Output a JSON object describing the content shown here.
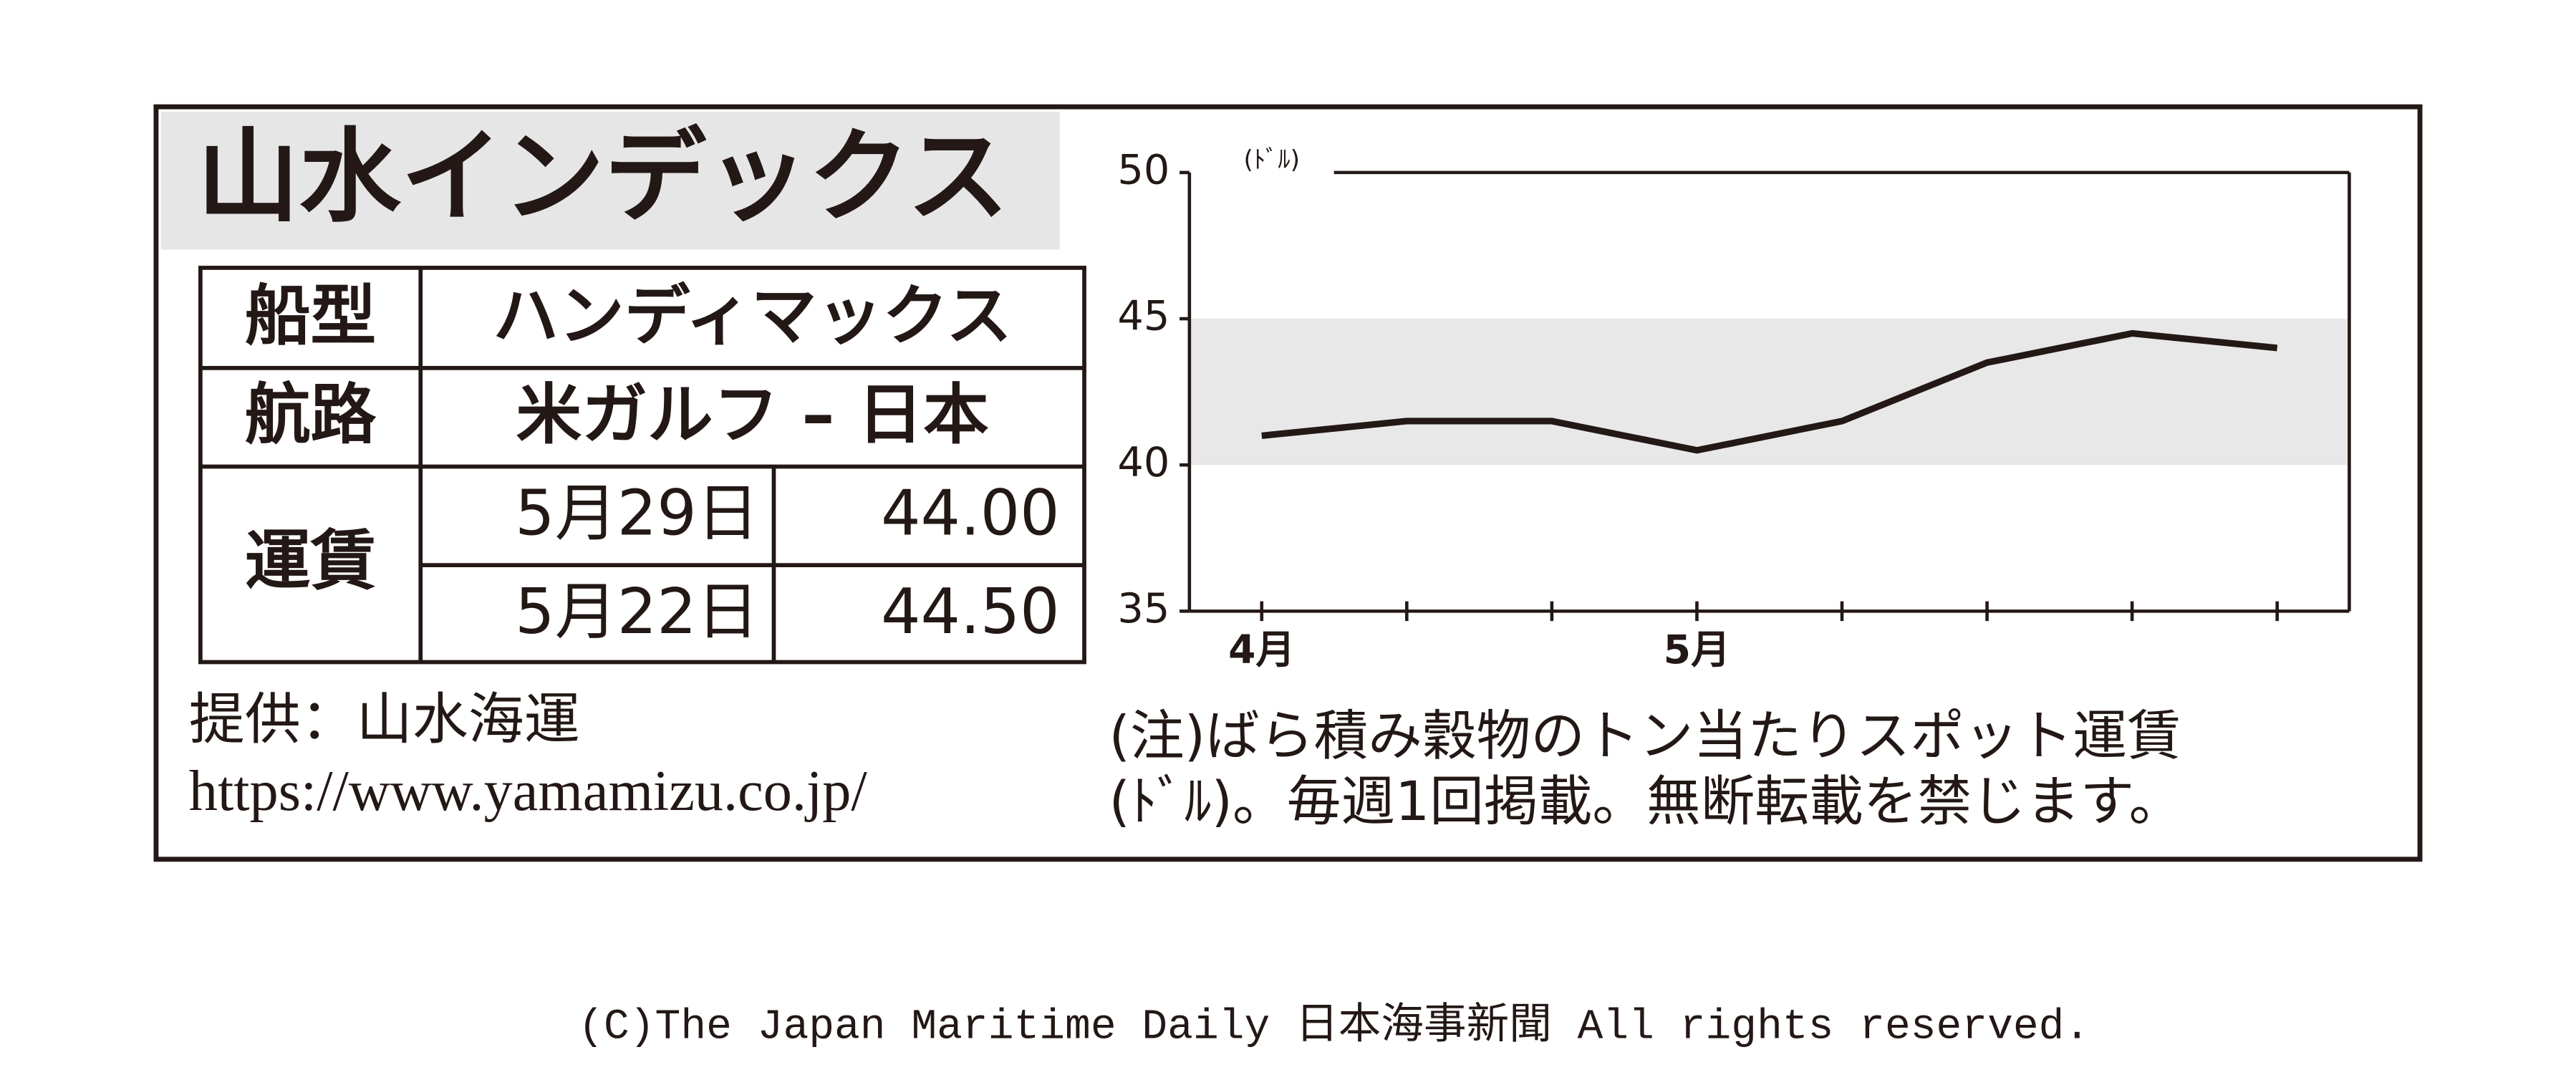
{
  "header": {
    "title": "山水インデックス"
  },
  "table": {
    "rows": [
      [
        "船型",
        "ハンディマックス"
      ],
      [
        "航路",
        "米ガルフ – 日本"
      ]
    ],
    "freight": {
      "label": "運賃",
      "entries": [
        [
          "5月29日",
          "44.00"
        ],
        [
          "5月22日",
          "44.50"
        ]
      ]
    }
  },
  "footer": {
    "provider": "提供：山水海運",
    "url": "https://www.yamamizu.co.jp/",
    "note": [
      "(注)ばら積み穀物のトン当たりスポット運賃",
      "(ﾄﾞﾙ)。毎週1回掲載。無断転載を禁じます。"
    ],
    "copyright": "(C)The Japan Maritime Daily 日本海事新聞 All rights reserved."
  },
  "chart_data": {
    "type": "line",
    "y_unit": "(ﾄﾞﾙ)",
    "categories": [
      "4月",
      null,
      null,
      "5月",
      null,
      null,
      null,
      null
    ],
    "values": [
      41,
      41.5,
      41.5,
      40.5,
      41.5,
      43.5,
      44.5,
      44
    ],
    "color": "#231815",
    "ylim": [
      35,
      50
    ],
    "yticks": [
      35,
      40,
      45,
      50
    ],
    "highlight_range": [
      40,
      45
    ],
    "highlight_color": "#e8e8e8",
    "grid": false
  }
}
